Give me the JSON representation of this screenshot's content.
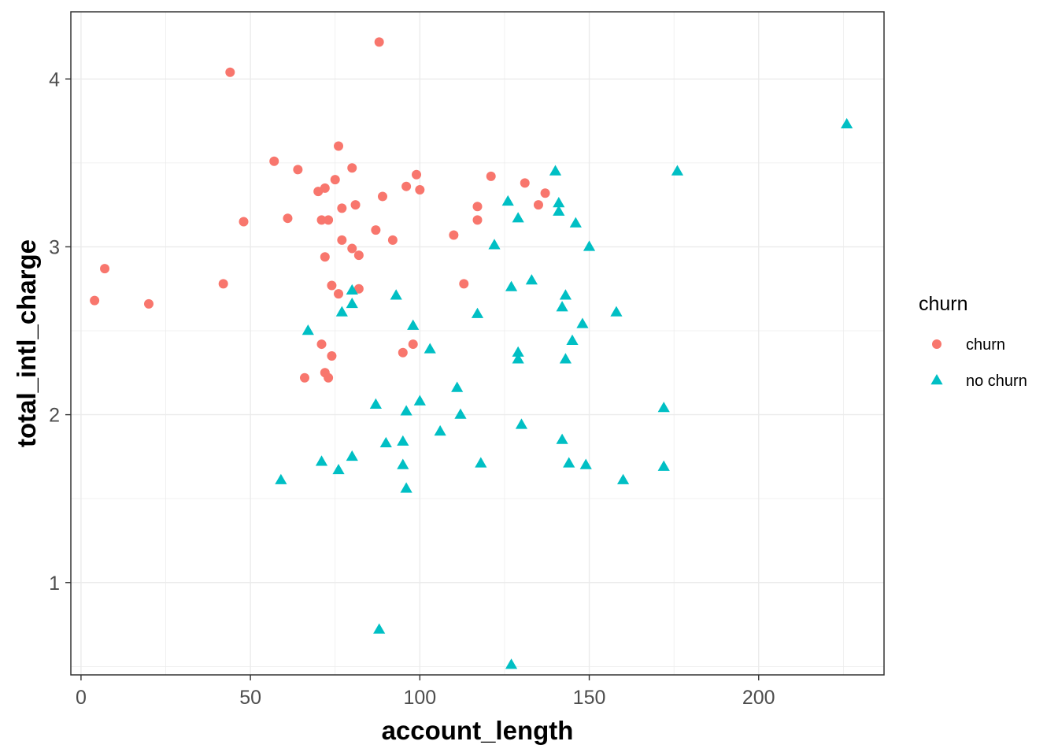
{
  "colors": {
    "churn": "#F8766D",
    "no_churn": "#00BFC4",
    "grid": "#ebebeb",
    "panel_border": "#333333"
  },
  "chart_data": {
    "type": "scatter",
    "xlabel": "account_length",
    "ylabel": "total_intl_charge",
    "xlim": [
      -3,
      237
    ],
    "ylim": [
      0.45,
      4.4
    ],
    "xticks": [
      0,
      50,
      100,
      150,
      200
    ],
    "yticks": [
      1,
      2,
      3,
      4
    ],
    "grid": true,
    "legend": {
      "title": "churn",
      "position": "right"
    },
    "series": [
      {
        "name": "churn",
        "marker": "circle",
        "color": "#F8766D",
        "points": [
          [
            4,
            2.68
          ],
          [
            7,
            2.87
          ],
          [
            20,
            2.66
          ],
          [
            42,
            2.78
          ],
          [
            44,
            4.04
          ],
          [
            48,
            3.15
          ],
          [
            57,
            3.51
          ],
          [
            61,
            3.17
          ],
          [
            64,
            3.46
          ],
          [
            66,
            2.22
          ],
          [
            70,
            3.33
          ],
          [
            71,
            3.16
          ],
          [
            71,
            2.42
          ],
          [
            72,
            3.35
          ],
          [
            72,
            2.94
          ],
          [
            72,
            2.25
          ],
          [
            73,
            3.16
          ],
          [
            73,
            2.22
          ],
          [
            74,
            2.77
          ],
          [
            74,
            2.35
          ],
          [
            75,
            3.4
          ],
          [
            76,
            2.72
          ],
          [
            76,
            3.6
          ],
          [
            77,
            3.04
          ],
          [
            77,
            3.23
          ],
          [
            80,
            3.47
          ],
          [
            80,
            2.99
          ],
          [
            81,
            3.25
          ],
          [
            82,
            2.95
          ],
          [
            82,
            2.75
          ],
          [
            87,
            3.1
          ],
          [
            88,
            4.22
          ],
          [
            89,
            3.3
          ],
          [
            92,
            3.04
          ],
          [
            95,
            2.37
          ],
          [
            96,
            3.36
          ],
          [
            98,
            2.42
          ],
          [
            99,
            3.43
          ],
          [
            100,
            3.34
          ],
          [
            110,
            3.07
          ],
          [
            113,
            2.78
          ],
          [
            117,
            3.24
          ],
          [
            117,
            3.16
          ],
          [
            121,
            3.42
          ],
          [
            131,
            3.38
          ],
          [
            135,
            3.25
          ],
          [
            137,
            3.32
          ]
        ]
      },
      {
        "name": "no churn",
        "marker": "triangle",
        "color": "#00BFC4",
        "points": [
          [
            59,
            1.61
          ],
          [
            67,
            2.5
          ],
          [
            71,
            1.72
          ],
          [
            76,
            1.67
          ],
          [
            77,
            2.61
          ],
          [
            80,
            2.74
          ],
          [
            80,
            1.75
          ],
          [
            80,
            2.66
          ],
          [
            87,
            2.06
          ],
          [
            88,
            0.72
          ],
          [
            90,
            1.83
          ],
          [
            93,
            2.71
          ],
          [
            95,
            1.84
          ],
          [
            95,
            1.7
          ],
          [
            96,
            2.02
          ],
          [
            96,
            1.56
          ],
          [
            98,
            2.53
          ],
          [
            100,
            2.08
          ],
          [
            103,
            2.39
          ],
          [
            106,
            1.9
          ],
          [
            111,
            2.16
          ],
          [
            112,
            2.0
          ],
          [
            117,
            2.6
          ],
          [
            118,
            1.71
          ],
          [
            122,
            3.01
          ],
          [
            126,
            3.27
          ],
          [
            127,
            2.76
          ],
          [
            127,
            0.51
          ],
          [
            129,
            2.33
          ],
          [
            129,
            2.37
          ],
          [
            129,
            3.17
          ],
          [
            130,
            1.94
          ],
          [
            133,
            2.8
          ],
          [
            140,
            3.45
          ],
          [
            141,
            3.26
          ],
          [
            141,
            3.21
          ],
          [
            142,
            2.64
          ],
          [
            142,
            1.85
          ],
          [
            143,
            2.71
          ],
          [
            143,
            2.33
          ],
          [
            144,
            1.71
          ],
          [
            145,
            2.44
          ],
          [
            146,
            3.14
          ],
          [
            148,
            2.54
          ],
          [
            149,
            1.7
          ],
          [
            150,
            3.0
          ],
          [
            158,
            2.61
          ],
          [
            160,
            1.61
          ],
          [
            172,
            2.04
          ],
          [
            172,
            1.69
          ],
          [
            176,
            3.45
          ],
          [
            226,
            3.73
          ]
        ]
      }
    ]
  }
}
